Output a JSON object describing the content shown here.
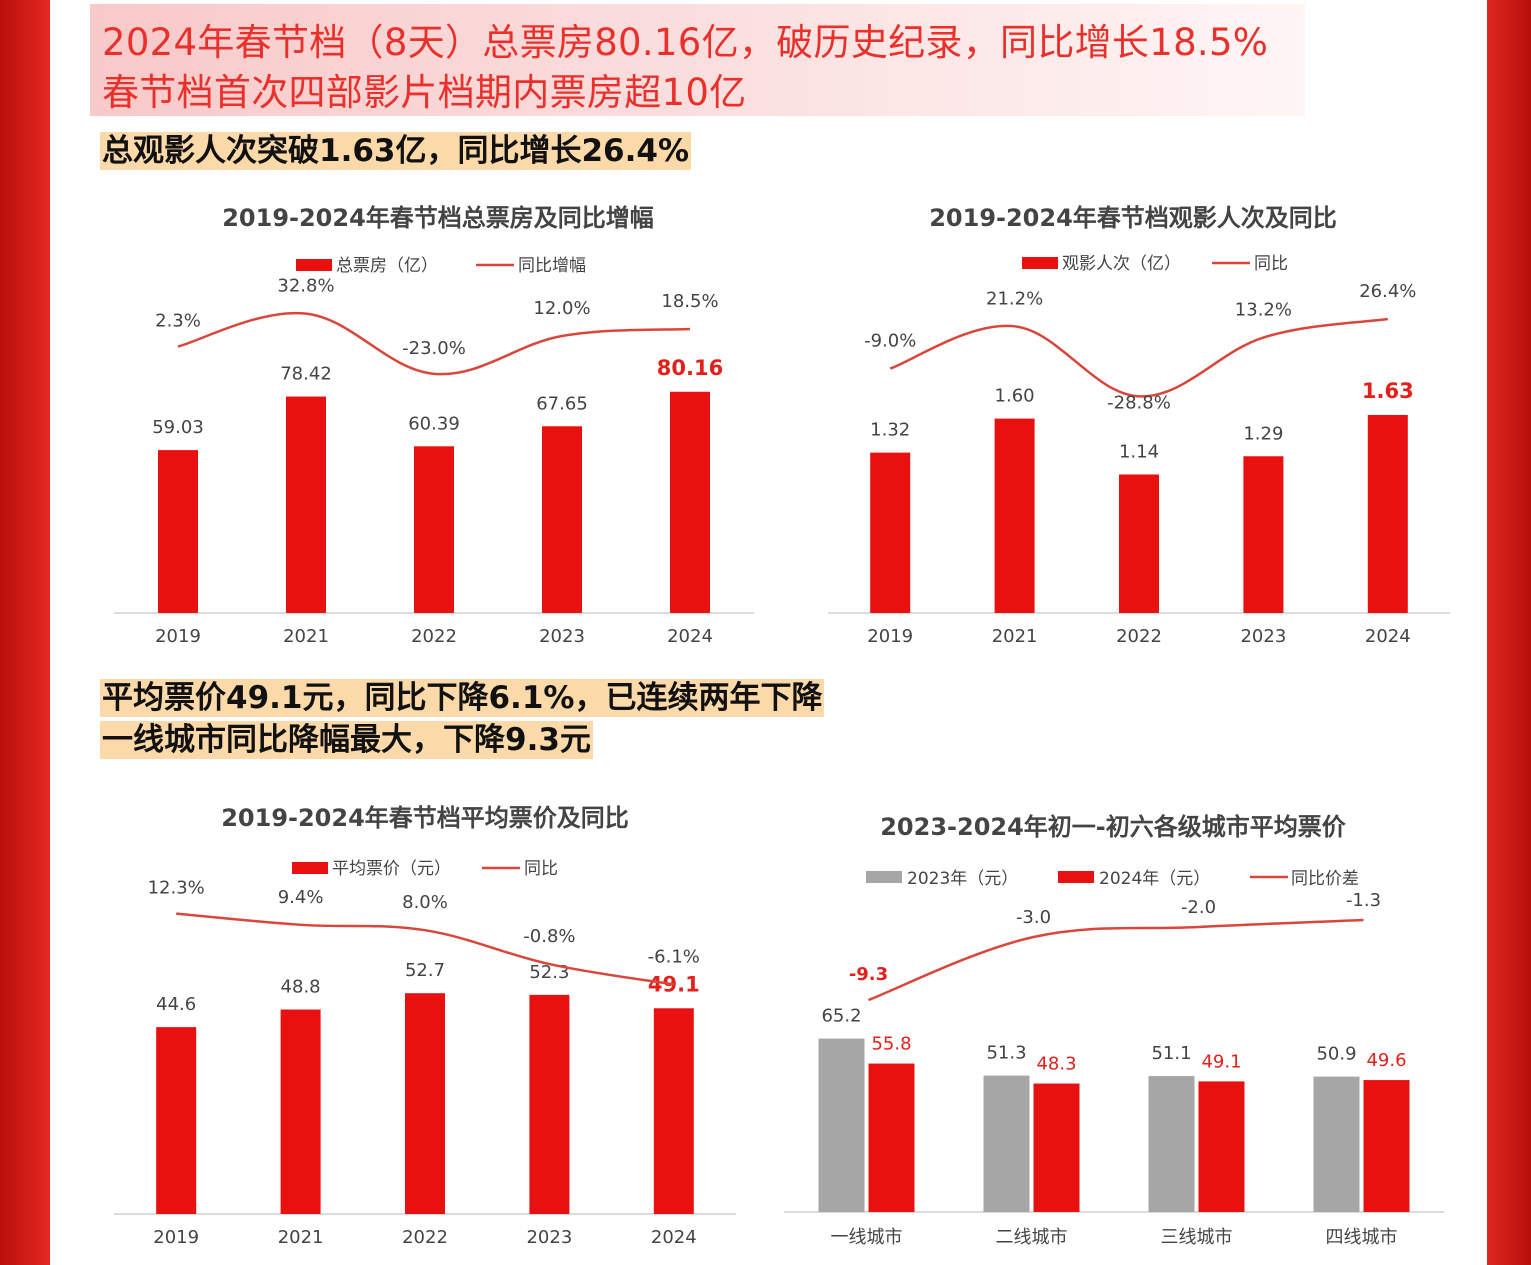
{
  "header": {
    "line1": "2024年春节档（8天）总票房80.16亿，破历史纪录，同比增长18.5%",
    "line2": "春节档首次四部影片档期内票房超10亿"
  },
  "highlights": {
    "box_office_people": "总观影人次突破1.63亿，同比增长26.4%",
    "price_line1": "平均票价49.1元，同比下降6.1%，已连续两年下降",
    "price_line2": "一线城市同比降幅最大，下降9.3元"
  },
  "colors": {
    "bar_red": "#e8110f",
    "line_red": "#d9463b",
    "bar_gray": "#a6a6a6",
    "label_red": "#e5201b"
  },
  "chart_data": [
    {
      "type": "bar",
      "title": "2019-2024年春节档总票房及同比增幅",
      "categories": [
        "2019",
        "2021",
        "2022",
        "2023",
        "2024"
      ],
      "series": [
        {
          "name": "总票房（亿）",
          "values": [
            59.03,
            78.42,
            60.39,
            67.65,
            80.16
          ],
          "labels": [
            "59.03",
            "78.42",
            "60.39",
            "67.65",
            "80.16"
          ]
        },
        {
          "name": "同比增幅",
          "type": "line",
          "values": [
            2.3,
            32.8,
            -23.0,
            12.0,
            18.5
          ],
          "labels": [
            "2.3%",
            "32.8%",
            "-23.0%",
            "12.0%",
            "18.5%"
          ]
        }
      ],
      "legend": "top-center"
    },
    {
      "type": "bar",
      "title": "2019-2024年春节档观影人次及同比",
      "categories": [
        "2019",
        "2021",
        "2022",
        "2023",
        "2024"
      ],
      "series": [
        {
          "name": "观影人次（亿）",
          "values": [
            1.32,
            1.6,
            1.14,
            1.29,
            1.63
          ],
          "labels": [
            "1.32",
            "1.60",
            "1.14",
            "1.29",
            "1.63"
          ]
        },
        {
          "name": "同比",
          "type": "line",
          "values": [
            -9.0,
            21.2,
            -28.8,
            13.2,
            26.4
          ],
          "labels": [
            "-9.0%",
            "21.2%",
            "-28.8%",
            "13.2%",
            "26.4%"
          ]
        }
      ],
      "legend": "top-center"
    },
    {
      "type": "bar",
      "title": "2019-2024年春节档平均票价及同比",
      "categories": [
        "2019",
        "2021",
        "2022",
        "2023",
        "2024"
      ],
      "series": [
        {
          "name": "平均票价（元）",
          "values": [
            44.6,
            48.8,
            52.7,
            52.3,
            49.1
          ],
          "labels": [
            "44.6",
            "48.8",
            "52.7",
            "52.3",
            "49.1"
          ]
        },
        {
          "name": "同比",
          "type": "line",
          "values": [
            12.3,
            9.4,
            8.0,
            -0.8,
            -6.1
          ],
          "labels": [
            "12.3%",
            "9.4%",
            "8.0%",
            "-0.8%",
            "-6.1%"
          ]
        }
      ],
      "legend": "top-center"
    },
    {
      "type": "bar",
      "title": "2023-2024年初一-初六各级城市平均票价",
      "categories": [
        "一线城市",
        "二线城市",
        "三线城市",
        "四线城市"
      ],
      "series": [
        {
          "name": "2023年（元）",
          "values": [
            65.2,
            51.3,
            51.1,
            50.9
          ],
          "labels": [
            "65.2",
            "51.3",
            "51.1",
            "50.9"
          ]
        },
        {
          "name": "2024年（元）",
          "values": [
            55.8,
            48.3,
            49.1,
            49.6
          ],
          "labels": [
            "55.8",
            "48.3",
            "49.1",
            "49.6"
          ]
        },
        {
          "name": "同比价差",
          "type": "line",
          "values": [
            -9.3,
            -3.0,
            -2.0,
            -1.3
          ],
          "labels": [
            "-9.3",
            "-3.0",
            "-2.0",
            "-1.3"
          ]
        }
      ],
      "legend": "top-left"
    }
  ]
}
